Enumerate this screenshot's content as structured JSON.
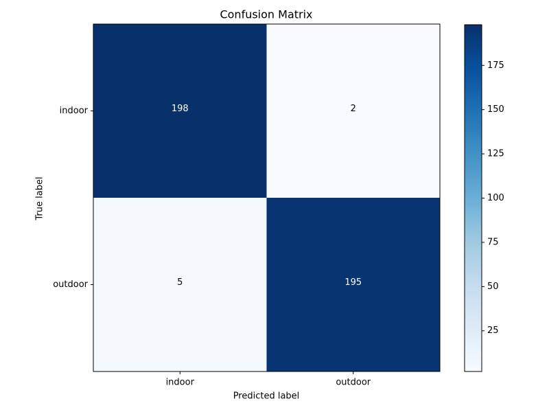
{
  "chart_data": {
    "type": "heatmap",
    "title": "Confusion Matrix",
    "xlabel": "Predicted label",
    "ylabel": "True label",
    "x_categories": [
      "indoor",
      "outdoor"
    ],
    "y_categories": [
      "indoor",
      "outdoor"
    ],
    "values": [
      [
        198,
        2
      ],
      [
        5,
        195
      ]
    ],
    "colormap": "Blues",
    "clim": [
      2,
      198
    ],
    "colorbar_ticks": [
      25,
      50,
      75,
      100,
      125,
      150,
      175
    ]
  }
}
